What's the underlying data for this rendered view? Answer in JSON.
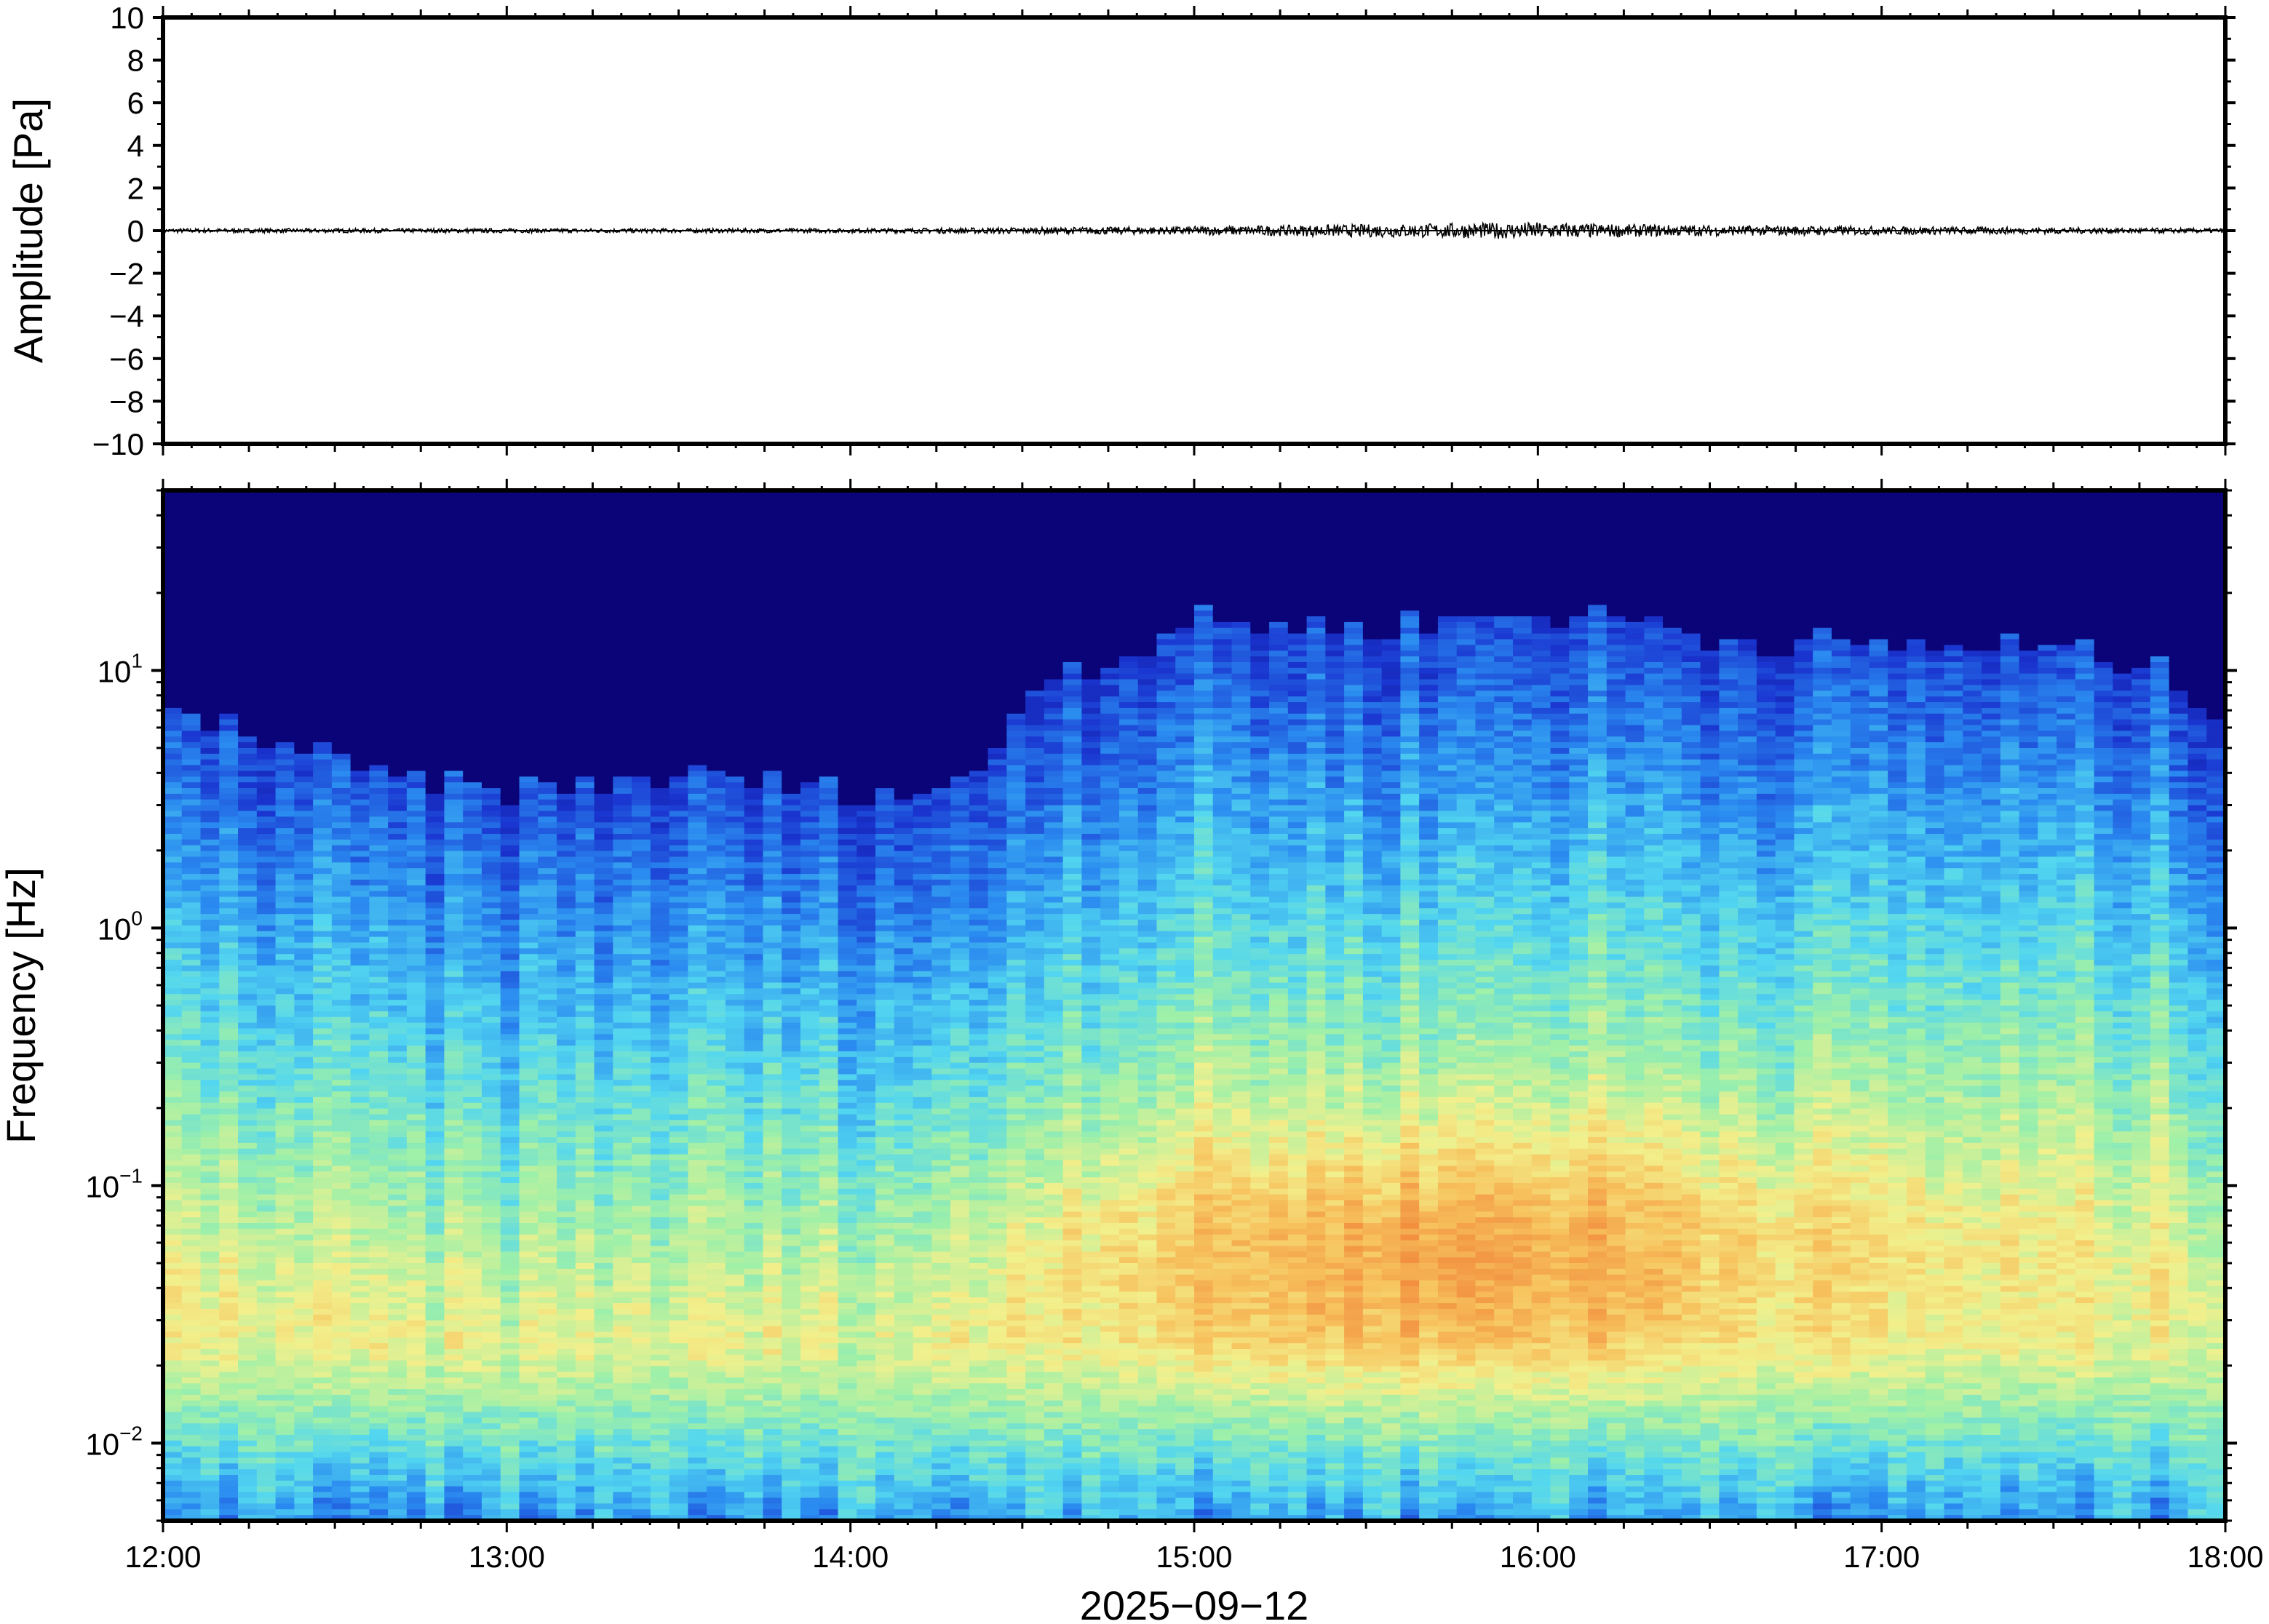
{
  "chart_data": [
    {
      "type": "line",
      "ylabel": "Amplitude [Pa]",
      "ylim": [
        -10,
        10
      ],
      "yticks": [
        10,
        8,
        6,
        4,
        2,
        0,
        -2,
        -4,
        -6,
        -8,
        -10
      ],
      "ytick_labels": [
        "10",
        "8",
        "6",
        "4",
        "2",
        "0",
        "−2",
        "−4",
        "−6",
        "−8",
        "−10"
      ],
      "x_range": [
        "12:00",
        "18:00"
      ],
      "series": [
        {
          "x": [
            "12:00",
            "12:30",
            "13:00",
            "13:30",
            "14:00",
            "14:30",
            "15:00",
            "15:15",
            "15:30",
            "15:45",
            "16:00",
            "16:15",
            "16:30",
            "17:00",
            "17:30",
            "18:00"
          ],
          "values": [
            0.1,
            0.1,
            0.1,
            0.1,
            0.1,
            0.15,
            0.2,
            0.25,
            0.3,
            0.35,
            0.4,
            0.3,
            0.25,
            0.2,
            0.15,
            0.1
          ]
        }
      ],
      "color": "#000000"
    },
    {
      "type": "heatmap",
      "ylabel": "Frequency [Hz]",
      "y_scale": "log",
      "ylim": [
        0.005,
        50
      ],
      "yticks": [
        0.01,
        0.1,
        1,
        10
      ],
      "ytick_labels": [
        {
          "base": "10",
          "exp": "−2"
        },
        {
          "base": "10",
          "exp": "−1"
        },
        {
          "base": "10",
          "exp": "0"
        },
        {
          "base": "10",
          "exp": "1"
        }
      ],
      "xlabel": "2025−09−12",
      "xticks": [
        "12:00",
        "13:00",
        "14:00",
        "15:00",
        "16:00",
        "17:00",
        "18:00"
      ],
      "x_hours": [
        12,
        18
      ],
      "colormap": [
        "#0b0479",
        "#1a35d0",
        "#2a8af0",
        "#52d6f0",
        "#9ef0a8",
        "#f2f08c",
        "#f7c25e",
        "#f29040"
      ],
      "upper_noise_edge_hz": {
        "hours": [
          12.0,
          12.3,
          12.6,
          13.0,
          13.5,
          14.0,
          14.3,
          14.45,
          14.55,
          14.8,
          15.0,
          15.5,
          15.7,
          16.0,
          16.3,
          16.5,
          17.0,
          17.5,
          17.8,
          18.0
        ],
        "hz": [
          6.0,
          5.0,
          3.5,
          3.0,
          3.5,
          3.0,
          3.0,
          5.0,
          9.0,
          10.0,
          14.0,
          13.0,
          14.0,
          15.0,
          14.0,
          12.0,
          11.0,
          11.0,
          9.0,
          6.0
        ]
      },
      "energy_peak": {
        "hours": 15.75,
        "hz": 0.05
      }
    }
  ]
}
